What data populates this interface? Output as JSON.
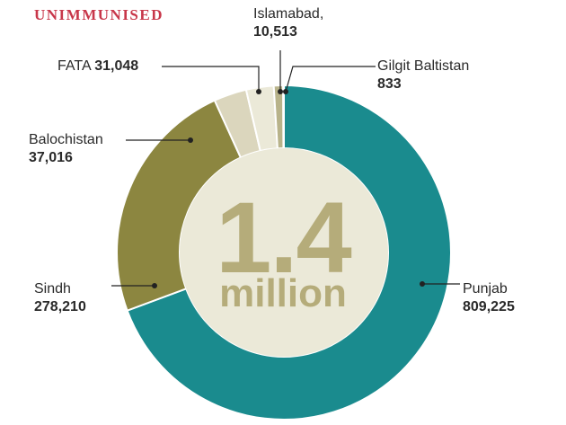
{
  "chart_data": {
    "type": "pie",
    "title": "UNIMMUNISED",
    "center_value": "1.4",
    "center_unit": "million",
    "slices": [
      {
        "label": "Punjab",
        "value": 809225,
        "value_text": "809,225",
        "color": "#1a8b8e"
      },
      {
        "label": "Sindh",
        "value": 278210,
        "value_text": "278,210",
        "color": "#8c8640"
      },
      {
        "label": "Balochistan",
        "value": 37016,
        "value_text": "37,016",
        "color": "#dbd6bd"
      },
      {
        "label": "FATA",
        "value": 31048,
        "value_text": "31,048",
        "color": "#ebe9d8"
      },
      {
        "label": "Islamabad,",
        "value": 10513,
        "value_text": "10,513",
        "color": "#b8b38a"
      },
      {
        "label": "Gilgit Baltistan",
        "value": 833,
        "value_text": "833",
        "color": "#7b7a45"
      }
    ]
  }
}
